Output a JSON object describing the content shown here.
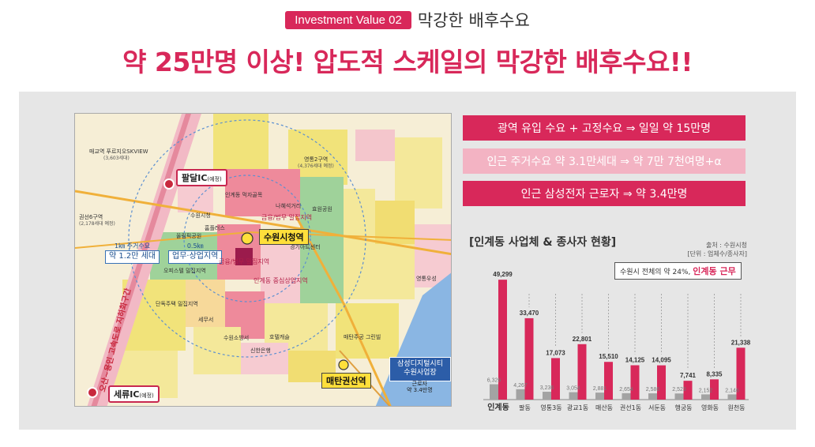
{
  "header": {
    "pill": "Investment Value 02",
    "subtitle": "막강한 배후수요",
    "headline": "약 25만명 이상! 압도적 스케일의 막강한 배후수요!!"
  },
  "banners": [
    "광역 유입 수요 + 고정수요 ⇒ 일일 약 15만명",
    "인근 주거수요 약 3.1만세대 ⇒ 약 7만 7천여명+α",
    "인근 삼성전자 근로자 ⇒ 약 3.4만명"
  ],
  "map": {
    "ic_paldal": "팔달IC",
    "ic_paldal_note": "(예정)",
    "ic_seryu": "세류IC",
    "ic_seryu_note": "(예정)",
    "station_city_hall": "수원시청역",
    "station_maetan": "매탄권선역",
    "circle_1km_top": "1㎞ 주거수요",
    "circle_1km_main": "약 1.2만 세대",
    "circle_05km_top": "0.5㎞",
    "circle_05km_main": "업무·상업지역",
    "samsung_box": "삼성디지털시티 수원사업장",
    "samsung_sub1": "근로자",
    "samsung_sub2": "약 3.4만명",
    "highway": "오산~용인 고속도로 지하화구간",
    "labels": [
      "매교역 푸르지오SKVIEW",
      "(3,603세대)",
      "권선6구역",
      "(2,178세대 예정)",
      "영통2구역",
      "(4,376세대 예정)",
      "인계동 먹자골목",
      "수원시청",
      "나혜석거리",
      "홈플러스",
      "올림픽공원",
      "오피스텔 밀집지역",
      "단독주택 밀집지역",
      "세무서",
      "수원소방서",
      "신한은행",
      "호텔캐슬",
      "경기아트센터",
      "효원공원",
      "매탄주공 그린빌",
      "영통우성"
    ],
    "zone_tags": [
      "금융/법무 밀집지역",
      "인계동 중심상업지역",
      "금융/법무 밀집지역"
    ]
  },
  "chart_title": "[인계동 사업체 & 종사자 현황]",
  "source_lines": [
    "출처 : 수원시청",
    "[단위 : 업체수/종사자]"
  ],
  "callout_text": "수원시 전체의 약 24%,",
  "callout_highlight": "인계동 근무",
  "chart_data": {
    "type": "bar",
    "categories": [
      "인계동",
      "팔동",
      "영통3동",
      "광교1동",
      "매산동",
      "권선1동",
      "서둔동",
      "행궁동",
      "영화동",
      "원천동"
    ],
    "series": [
      {
        "values": [
          6326,
          4267,
          3236,
          3054,
          2881,
          2654,
          2586,
          2523,
          2152,
          2146
        ]
      },
      {
        "values": [
          49299,
          33470,
          17073,
          22801,
          15510,
          14125,
          14095,
          7741,
          8335,
          21338
        ]
      }
    ],
    "value_labels_gray": [
      "6,326",
      "4,267",
      "3,236",
      "3,054",
      "2,881",
      "2,654",
      "2,586",
      "2,523",
      "2,152",
      "2,146"
    ],
    "value_labels_red": [
      "49,299",
      "33,470",
      "17,073",
      "22,801",
      "15,510",
      "14,125",
      "14,095",
      "7,741",
      "8,335",
      "21,338"
    ],
    "colors": {
      "gray": "#a3a3a3",
      "red": "#d8285a"
    }
  }
}
